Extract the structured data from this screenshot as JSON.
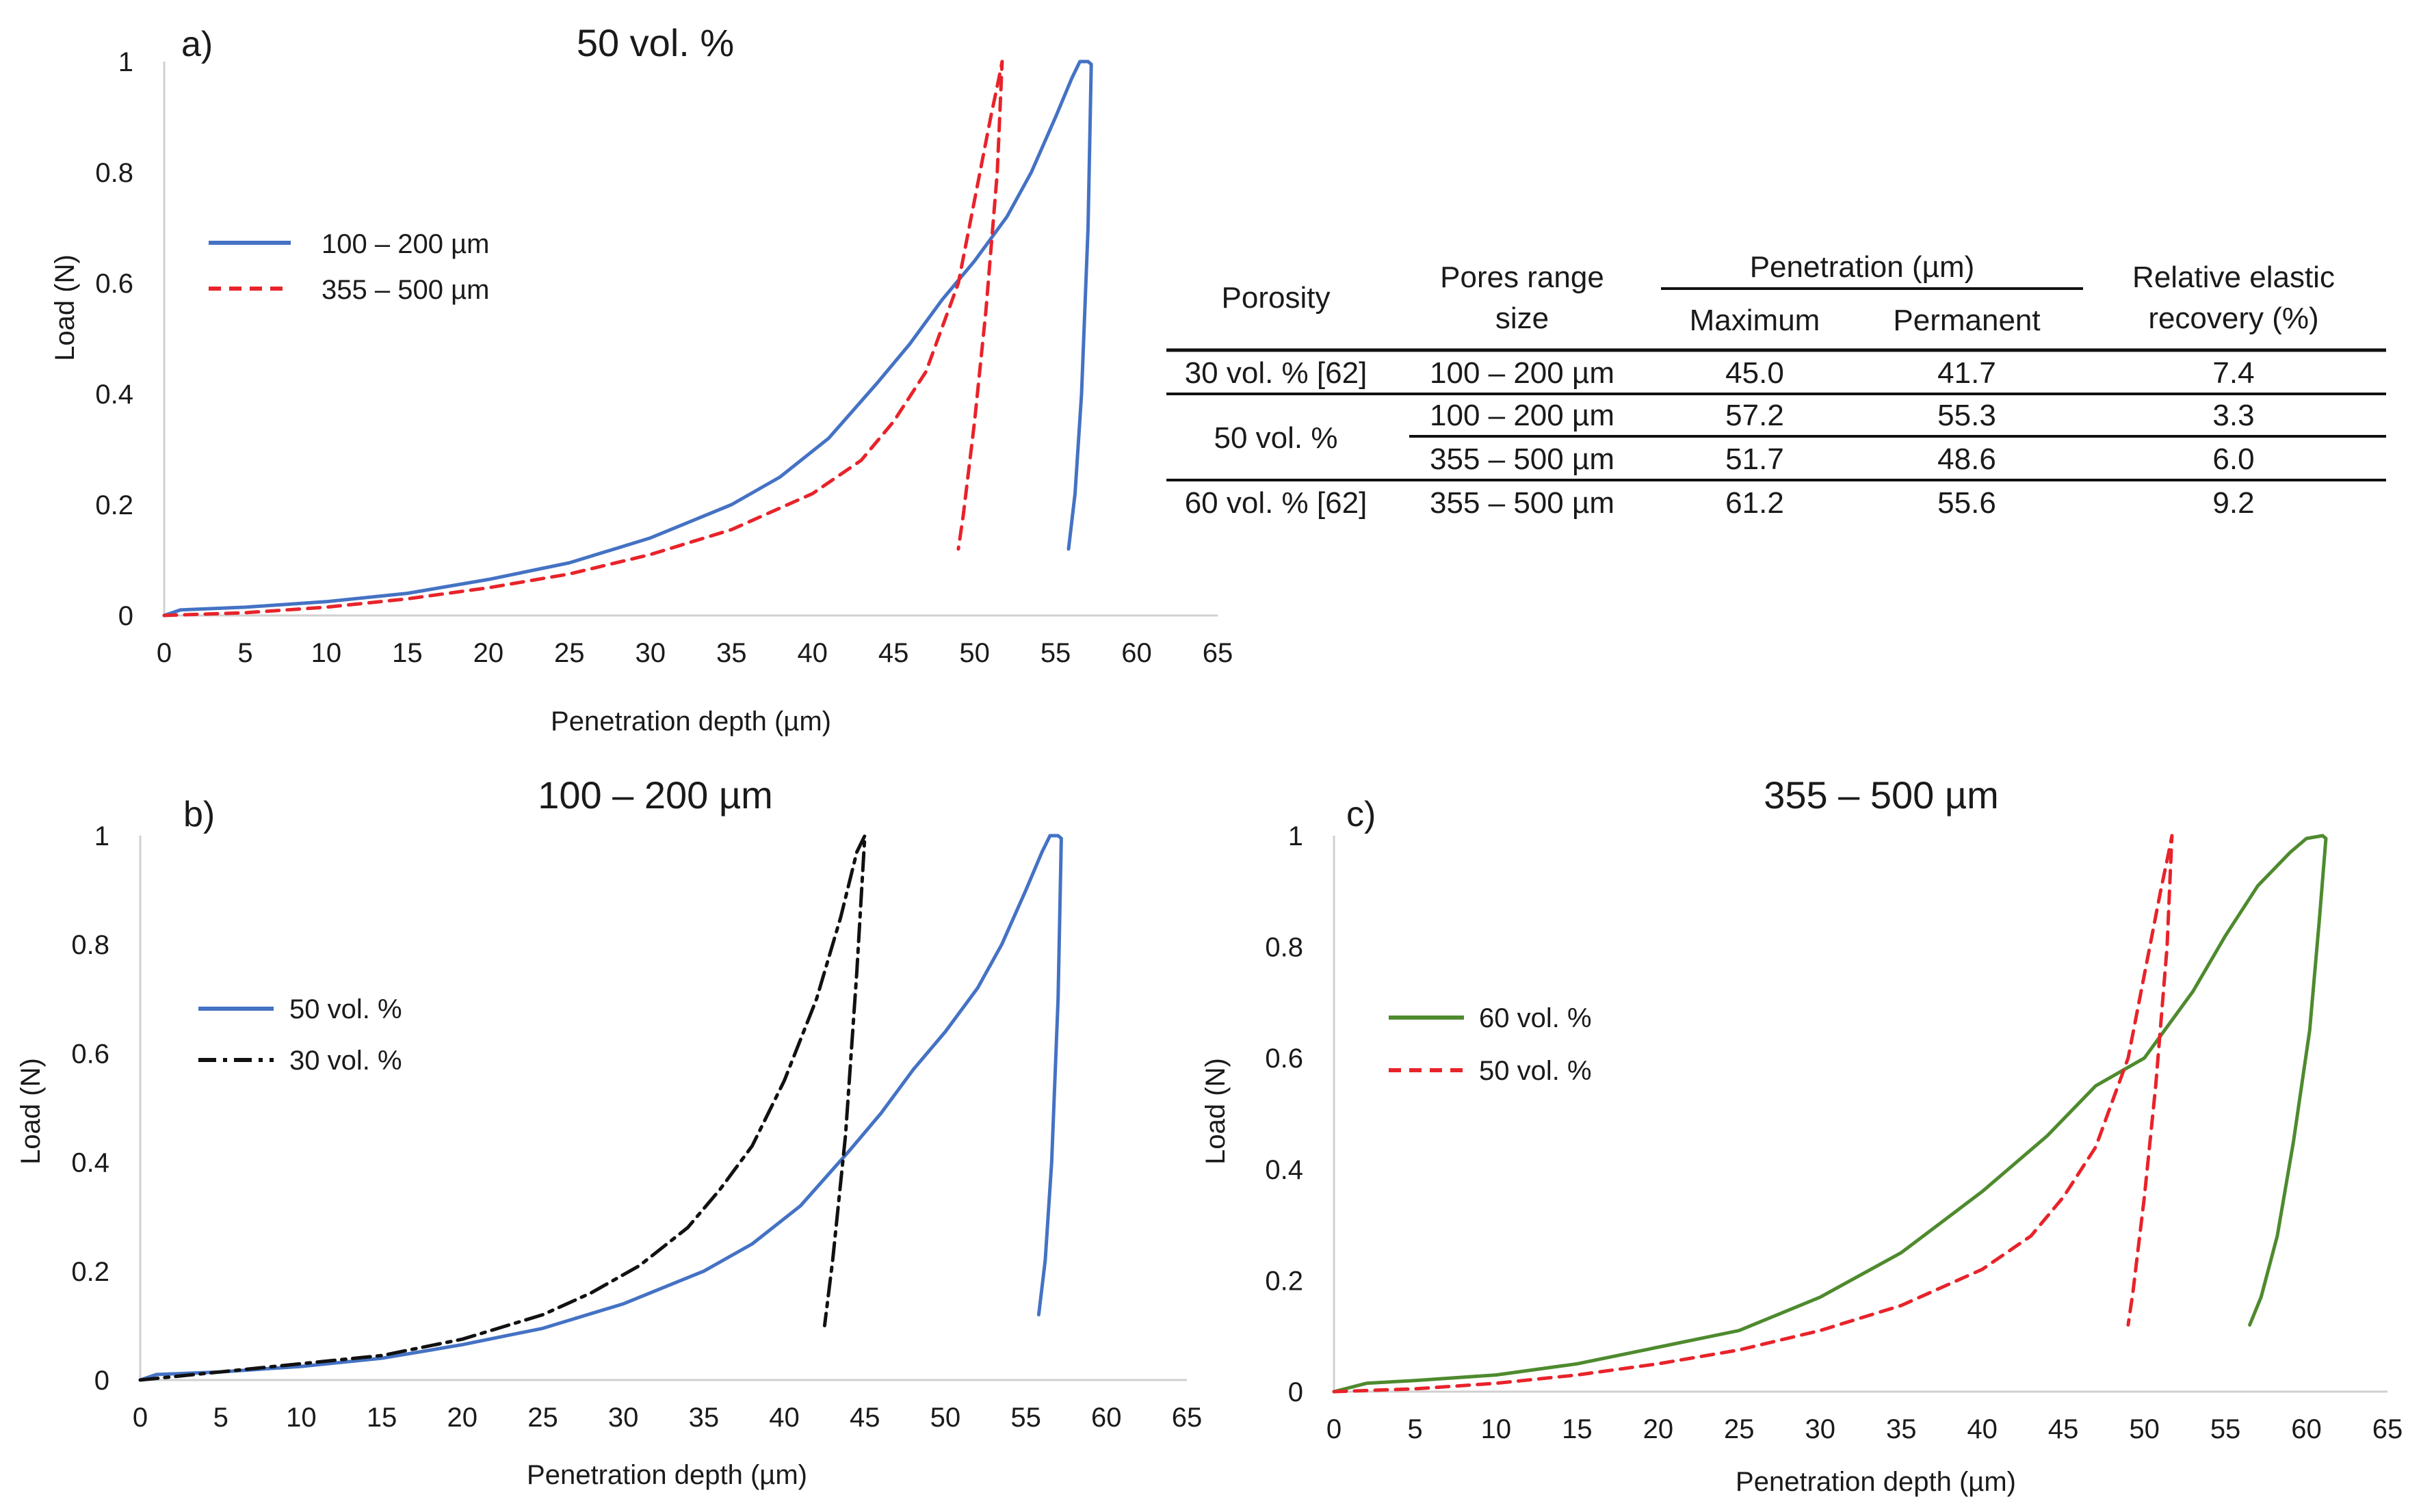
{
  "figure": {
    "panels": [
      {
        "letter": "a)",
        "title": "50 vol. %"
      },
      {
        "letter": "b)",
        "title": "100 – 200 µm"
      },
      {
        "letter": "c)",
        "title": "355 – 500 µm"
      }
    ]
  },
  "colors": {
    "blue": "#4472C4",
    "red": "#E8232A",
    "black": "#111111",
    "green": "#4E8A2E",
    "axis": "#d0d0d0"
  },
  "chart_data": [
    {
      "id": "a",
      "type": "line",
      "title": "50 vol. %",
      "xlabel": "Penetration depth (µm)",
      "ylabel": "Load (N)",
      "xlim": [
        0,
        65
      ],
      "ylim": [
        0,
        1
      ],
      "xticks": [
        0,
        5,
        10,
        15,
        20,
        25,
        30,
        35,
        40,
        45,
        50,
        55,
        60,
        65
      ],
      "yticks": [
        0,
        0.2,
        0.4,
        0.6,
        0.8,
        1
      ],
      "ytick_labels": [
        "0",
        "0.2",
        "0.4",
        "0.6",
        "0.8",
        "1"
      ],
      "legend_position": "upper-left",
      "series": [
        {
          "name": "100 – 200 µm",
          "color": "blue",
          "style": "solid",
          "points": [
            [
              0,
              0
            ],
            [
              1,
              0.01
            ],
            [
              5,
              0.015
            ],
            [
              10,
              0.025
            ],
            [
              15,
              0.04
            ],
            [
              20,
              0.065
            ],
            [
              25,
              0.095
            ],
            [
              30,
              0.14
            ],
            [
              35,
              0.2
            ],
            [
              38,
              0.25
            ],
            [
              41,
              0.32
            ],
            [
              44,
              0.42
            ],
            [
              46,
              0.49
            ],
            [
              48,
              0.57
            ],
            [
              50,
              0.64
            ],
            [
              52,
              0.72
            ],
            [
              53.5,
              0.8
            ],
            [
              55,
              0.9
            ],
            [
              56,
              0.97
            ],
            [
              56.5,
              1.0
            ],
            [
              57,
              1.0
            ],
            [
              57.2,
              0.995
            ],
            [
              57.0,
              0.7
            ],
            [
              56.6,
              0.4
            ],
            [
              56.2,
              0.22
            ],
            [
              55.8,
              0.12
            ]
          ]
        },
        {
          "name": "355 – 500 µm",
          "color": "red",
          "style": "dashed",
          "points": [
            [
              0,
              0
            ],
            [
              5,
              0.005
            ],
            [
              10,
              0.015
            ],
            [
              15,
              0.03
            ],
            [
              20,
              0.05
            ],
            [
              25,
              0.075
            ],
            [
              30,
              0.11
            ],
            [
              35,
              0.155
            ],
            [
              40,
              0.22
            ],
            [
              43,
              0.28
            ],
            [
              45,
              0.35
            ],
            [
              47,
              0.44
            ],
            [
              48,
              0.52
            ],
            [
              49,
              0.6
            ],
            [
              50,
              0.75
            ],
            [
              51,
              0.9
            ],
            [
              51.5,
              0.97
            ],
            [
              51.7,
              1.0
            ],
            [
              51.4,
              0.8
            ],
            [
              50.7,
              0.55
            ],
            [
              50,
              0.35
            ],
            [
              49.3,
              0.18
            ],
            [
              49,
              0.12
            ]
          ]
        }
      ]
    },
    {
      "id": "b",
      "type": "line",
      "title": "100 – 200 µm",
      "xlabel": "Penetration depth (µm)",
      "ylabel": "Load (N)",
      "xlim": [
        0,
        65
      ],
      "ylim": [
        0,
        1
      ],
      "xticks": [
        0,
        5,
        10,
        15,
        20,
        25,
        30,
        35,
        40,
        45,
        50,
        55,
        60,
        65
      ],
      "yticks": [
        0,
        0.2,
        0.4,
        0.6,
        0.8,
        1
      ],
      "ytick_labels": [
        "0",
        "0.2",
        "0.4",
        "0.6",
        "0.8",
        "1"
      ],
      "legend_position": "upper-left",
      "series": [
        {
          "name": "50 vol. %",
          "color": "blue",
          "style": "solid",
          "points": [
            [
              0,
              0
            ],
            [
              1,
              0.01
            ],
            [
              5,
              0.015
            ],
            [
              10,
              0.025
            ],
            [
              15,
              0.04
            ],
            [
              20,
              0.065
            ],
            [
              25,
              0.095
            ],
            [
              30,
              0.14
            ],
            [
              35,
              0.2
            ],
            [
              38,
              0.25
            ],
            [
              41,
              0.32
            ],
            [
              44,
              0.42
            ],
            [
              46,
              0.49
            ],
            [
              48,
              0.57
            ],
            [
              50,
              0.64
            ],
            [
              52,
              0.72
            ],
            [
              53.5,
              0.8
            ],
            [
              55,
              0.9
            ],
            [
              56,
              0.97
            ],
            [
              56.5,
              1.0
            ],
            [
              57,
              1.0
            ],
            [
              57.2,
              0.995
            ],
            [
              57.0,
              0.7
            ],
            [
              56.6,
              0.4
            ],
            [
              56.2,
              0.22
            ],
            [
              55.8,
              0.12
            ]
          ]
        },
        {
          "name": "30 vol. %",
          "color": "black",
          "style": "dashdot",
          "points": [
            [
              0,
              0
            ],
            [
              5,
              0.015
            ],
            [
              10,
              0.03
            ],
            [
              15,
              0.045
            ],
            [
              20,
              0.075
            ],
            [
              25,
              0.12
            ],
            [
              28,
              0.16
            ],
            [
              31,
              0.21
            ],
            [
              34,
              0.28
            ],
            [
              36,
              0.35
            ],
            [
              38,
              0.43
            ],
            [
              40,
              0.55
            ],
            [
              42,
              0.7
            ],
            [
              43.5,
              0.85
            ],
            [
              44.5,
              0.97
            ],
            [
              45,
              1.0
            ],
            [
              44.5,
              0.75
            ],
            [
              43.8,
              0.45
            ],
            [
              43,
              0.22
            ],
            [
              42.5,
              0.1
            ]
          ]
        }
      ]
    },
    {
      "id": "c",
      "type": "line",
      "title": "355 – 500 µm",
      "xlabel": "Penetration depth (µm)",
      "ylabel": "Load (N)",
      "xlim": [
        0,
        65
      ],
      "ylim": [
        0,
        1
      ],
      "xticks": [
        0,
        5,
        10,
        15,
        20,
        25,
        30,
        35,
        40,
        45,
        50,
        55,
        60,
        65
      ],
      "yticks": [
        0,
        0.2,
        0.4,
        0.6,
        0.8,
        1
      ],
      "ytick_labels": [
        "0",
        "0.2",
        "0.4",
        "0.6",
        "0.8",
        "1"
      ],
      "legend_position": "upper-left",
      "series": [
        {
          "name": "60 vol. %",
          "color": "green",
          "style": "solid",
          "points": [
            [
              0,
              0
            ],
            [
              2,
              0.015
            ],
            [
              5,
              0.02
            ],
            [
              10,
              0.03
            ],
            [
              15,
              0.05
            ],
            [
              20,
              0.08
            ],
            [
              25,
              0.11
            ],
            [
              30,
              0.17
            ],
            [
              35,
              0.25
            ],
            [
              40,
              0.36
            ],
            [
              44,
              0.46
            ],
            [
              47,
              0.55
            ],
            [
              50,
              0.6
            ],
            [
              53,
              0.72
            ],
            [
              55,
              0.82
            ],
            [
              57,
              0.91
            ],
            [
              59,
              0.97
            ],
            [
              60,
              0.995
            ],
            [
              61,
              1.0
            ],
            [
              61.2,
              0.995
            ],
            [
              60.8,
              0.85
            ],
            [
              60.2,
              0.65
            ],
            [
              59.2,
              0.45
            ],
            [
              58.2,
              0.28
            ],
            [
              57.2,
              0.17
            ],
            [
              56.5,
              0.12
            ]
          ]
        },
        {
          "name": "50 vol. %",
          "color": "red",
          "style": "dashed",
          "points": [
            [
              0,
              0
            ],
            [
              5,
              0.005
            ],
            [
              10,
              0.015
            ],
            [
              15,
              0.03
            ],
            [
              20,
              0.05
            ],
            [
              25,
              0.075
            ],
            [
              30,
              0.11
            ],
            [
              35,
              0.155
            ],
            [
              40,
              0.22
            ],
            [
              43,
              0.28
            ],
            [
              45,
              0.35
            ],
            [
              47,
              0.44
            ],
            [
              48,
              0.52
            ],
            [
              49,
              0.6
            ],
            [
              50,
              0.75
            ],
            [
              51,
              0.9
            ],
            [
              51.5,
              0.97
            ],
            [
              51.7,
              1.0
            ],
            [
              51.4,
              0.8
            ],
            [
              50.7,
              0.55
            ],
            [
              50,
              0.35
            ],
            [
              49.3,
              0.18
            ],
            [
              49,
              0.12
            ]
          ]
        }
      ]
    }
  ],
  "table": {
    "headers": {
      "porosity": "Porosity",
      "pores_line1": "Pores range",
      "pores_line2": "size",
      "penetration": "Penetration (µm)",
      "maximum": "Maximum",
      "permanent": "Permanent",
      "rer_line1": "Relative elastic",
      "rer_line2": "recovery (%)"
    },
    "rows": [
      {
        "porosity": "30 vol. % [62]",
        "size": "100 – 200 µm",
        "maximum": "45.0",
        "permanent": "41.7",
        "recovery": "7.4"
      },
      {
        "porosity": "50 vol. %",
        "size": "100 – 200 µm",
        "maximum": "57.2",
        "permanent": "55.3",
        "recovery": "3.3"
      },
      {
        "porosity": "",
        "size": "355 – 500 µm",
        "maximum": "51.7",
        "permanent": "48.6",
        "recovery": "6.0"
      },
      {
        "porosity": "60 vol. % [62]",
        "size": "355 – 500 µm",
        "maximum": "61.2",
        "permanent": "55.6",
        "recovery": "9.2"
      }
    ]
  }
}
